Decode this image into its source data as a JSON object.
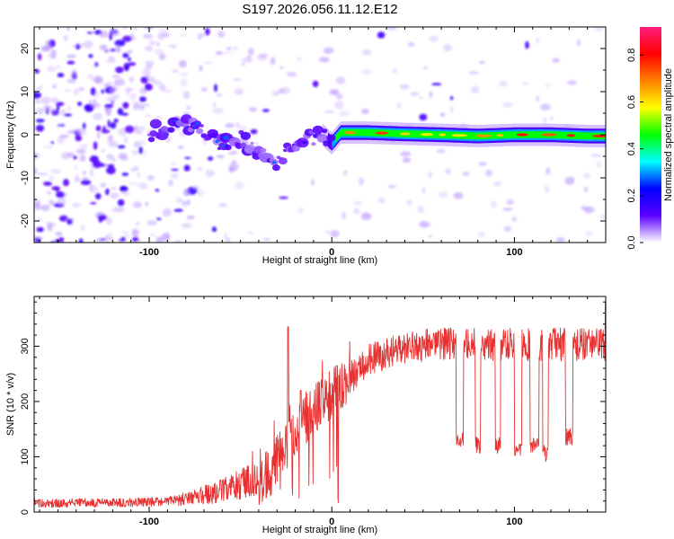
{
  "chart_data": [
    {
      "type": "heatmap",
      "title": "S197.2026.056.11.12.E12",
      "xlabel": "Height of straight line (km)",
      "ylabel": "Frequency (Hz)",
      "xlim": [
        -163,
        150
      ],
      "ylim": [
        -25,
        25
      ],
      "xticks": [
        -100,
        0,
        100
      ],
      "xtick_labels": [
        "-100",
        "0",
        "100"
      ],
      "yticks": [
        -20,
        -10,
        0,
        10,
        20
      ],
      "ytick_labels": [
        "-20",
        "-10",
        "0",
        "10",
        "20"
      ],
      "ridge": {
        "x": [
          -100,
          -90,
          -80,
          -70,
          -60,
          -50,
          -40,
          -35,
          -30,
          -25,
          -20,
          -15,
          -10,
          -5,
          0,
          5,
          10,
          20,
          40,
          60,
          80,
          100,
          120,
          140,
          150
        ],
        "y": [
          0.5,
          1.5,
          3,
          1.0,
          -2.0,
          -1.0,
          -4.0,
          -5.5,
          -6.5,
          -4.0,
          -3.0,
          -1.0,
          -0.5,
          0.0,
          -2.0,
          0.5,
          0.5,
          0.5,
          0.2,
          0.0,
          -0.3,
          0.0,
          0.0,
          -0.3,
          -0.3
        ]
      },
      "colorbar": {
        "label": "Normalized spectral amplitude",
        "range": [
          0,
          0.92
        ],
        "ticks": [
          0.0,
          0.2,
          0.4,
          0.6,
          0.8
        ],
        "tick_labels": [
          "0.0",
          "0.2",
          "0.4",
          "0.6",
          "0.8"
        ],
        "stops": [
          "#ffffff",
          "#5b00ff",
          "#0000ff",
          "#00ffff",
          "#00ff00",
          "#ffff00",
          "#ff8000",
          "#ff0000",
          "#ff1f7f"
        ]
      }
    },
    {
      "type": "line",
      "xlabel": "Height of straight line (km)",
      "ylabel": "SNR (10 * v/v)",
      "xlim": [
        -163,
        150
      ],
      "ylim": [
        0,
        390
      ],
      "xticks": [
        -100,
        0,
        100
      ],
      "xtick_labels": [
        "-100",
        "0",
        "100"
      ],
      "yticks": [
        0,
        100,
        200,
        300
      ],
      "ytick_labels": [
        "0",
        "100",
        "200",
        "300"
      ],
      "line_color": "#e83030",
      "trend": {
        "x": [
          -163,
          -100,
          -80,
          -60,
          -40,
          -30,
          -20,
          -10,
          0,
          10,
          20,
          30,
          40,
          60,
          80,
          100,
          120,
          140,
          150
        ],
        "y": [
          15,
          17,
          22,
          35,
          60,
          90,
          140,
          180,
          210,
          240,
          270,
          285,
          295,
          300,
          300,
          300,
          300,
          300,
          300
        ]
      },
      "spikes": [
        {
          "x": -24,
          "y": 335
        },
        {
          "x": -17,
          "y": 220
        },
        {
          "x": 3,
          "y": 265
        },
        {
          "x": 150,
          "y": 380
        }
      ],
      "dips": [
        {
          "x": 70,
          "width": 4,
          "y": 125
        },
        {
          "x": 80,
          "width": 3,
          "y": 115
        },
        {
          "x": 91,
          "width": 3,
          "y": 115
        },
        {
          "x": 102,
          "width": 4,
          "y": 110
        },
        {
          "x": 111,
          "width": 5,
          "y": 115
        },
        {
          "x": 117,
          "width": 3,
          "y": 100
        },
        {
          "x": 130,
          "width": 4,
          "y": 130
        }
      ]
    }
  ]
}
